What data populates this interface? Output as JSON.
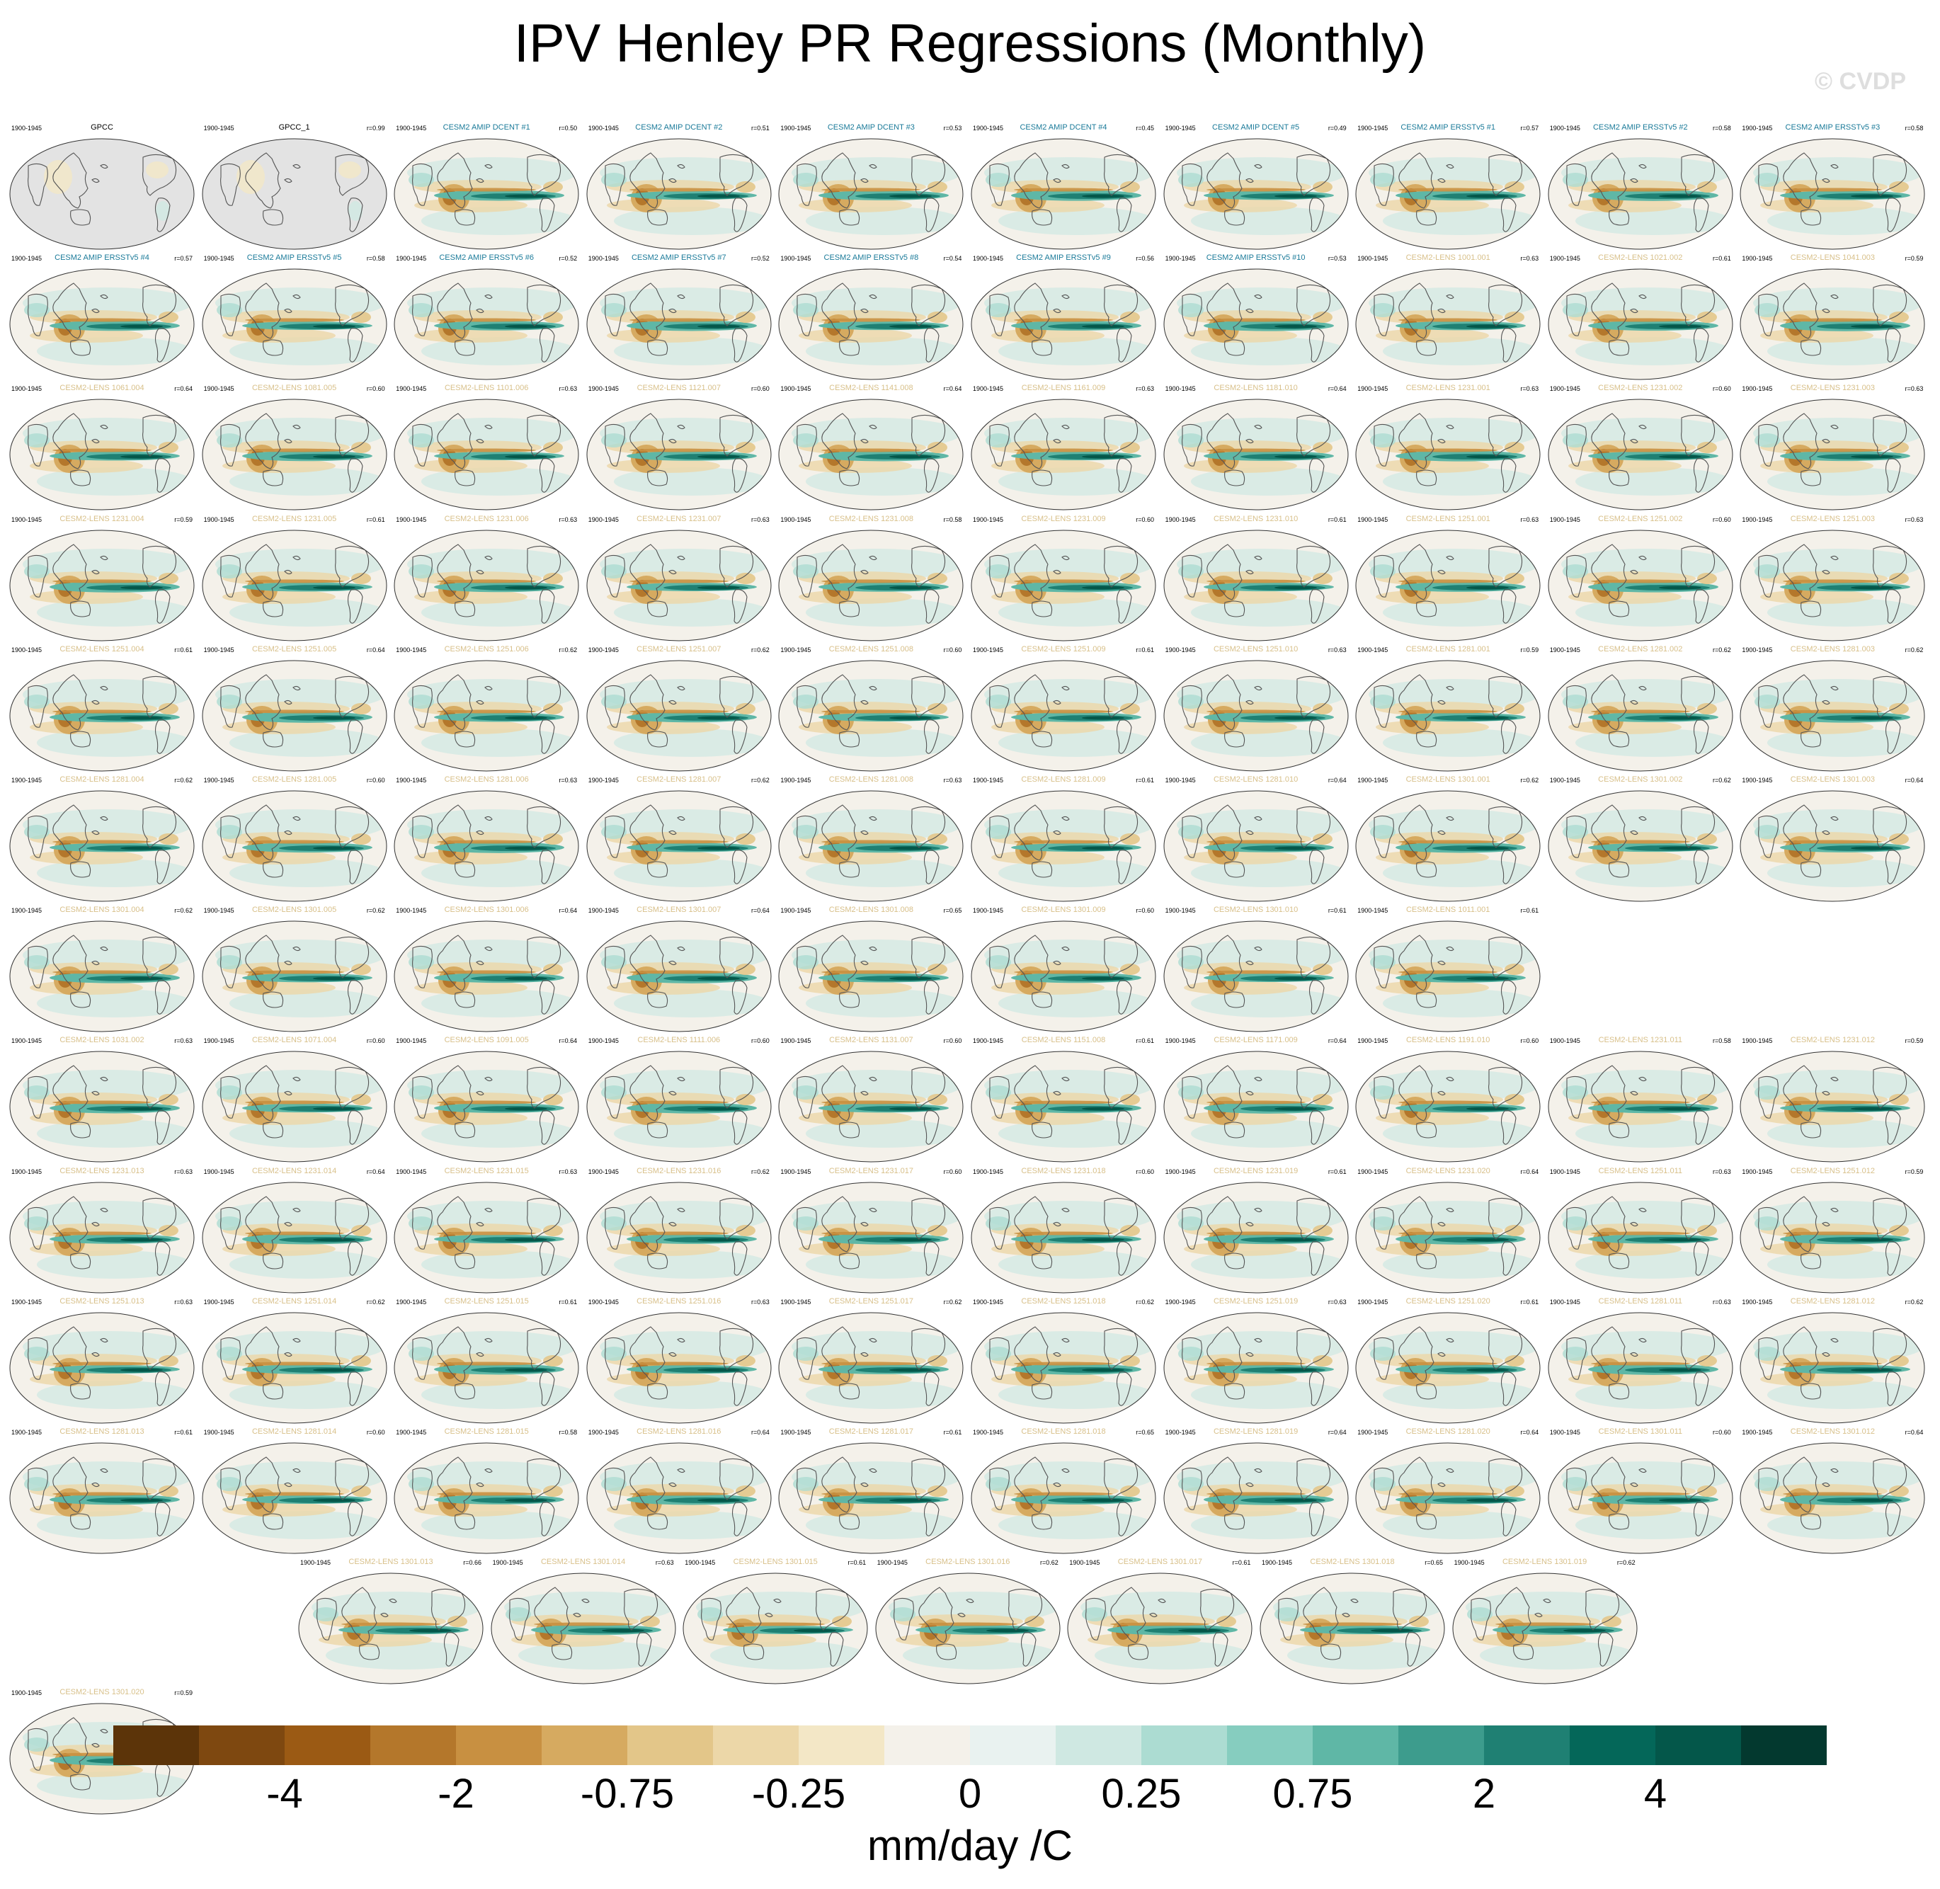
{
  "title": "IPV Henley PR Regressions (Monthly)",
  "watermark": "© CVDP",
  "colors": {
    "observations_label": "#000000",
    "amip_label": "#1a7a99",
    "lens_label": "#d8c08a",
    "land_obs_background": "#e3e3e3",
    "coastline": "#555555"
  },
  "chart_data": {
    "type": "heatmap",
    "title": "IPV Henley PR Regressions (Monthly)",
    "units": "mm/day /C",
    "colorbar": {
      "levels": [
        -5,
        -4,
        -3,
        -2,
        -1,
        -0.75,
        -0.5,
        -0.25,
        -0.1,
        0,
        0.1,
        0.25,
        0.5,
        0.75,
        1,
        2,
        3,
        4,
        5
      ],
      "tick_labels": [
        "-4",
        "-2",
        "-0.75",
        "-0.25",
        "0",
        "0.25",
        "0.75",
        "2",
        "4"
      ],
      "colors": [
        "#5c3409",
        "#7e4810",
        "#9b5a14",
        "#b4772b",
        "#c89041",
        "#d6aa60",
        "#e3c689",
        "#ecd7a8",
        "#f3e7c6",
        "#f4f1ea",
        "#e9f2f0",
        "#cfe8e2",
        "#acdcd2",
        "#86cdbf",
        "#5fb7a6",
        "#3d9c8d",
        "#1f8073",
        "#046759",
        "#04574a",
        "#03392f"
      ]
    },
    "panels": [
      {
        "name": "GPCC",
        "period": "1900-1945",
        "r": ""
      },
      {
        "name": "GPCC_1",
        "period": "1900-1945",
        "r": "r=0.99"
      },
      {
        "name": "CESM2 AMIP DCENT #1",
        "period": "1900-1945",
        "r": "r=0.50"
      },
      {
        "name": "CESM2 AMIP DCENT #2",
        "period": "1900-1945",
        "r": "r=0.51"
      },
      {
        "name": "CESM2 AMIP DCENT #3",
        "period": "1900-1945",
        "r": "r=0.53"
      },
      {
        "name": "CESM2 AMIP DCENT #4",
        "period": "1900-1945",
        "r": "r=0.45"
      },
      {
        "name": "CESM2 AMIP DCENT #5",
        "period": "1900-1945",
        "r": "r=0.49"
      },
      {
        "name": "CESM2 AMIP ERSSTv5 #1",
        "period": "1900-1945",
        "r": "r=0.57"
      },
      {
        "name": "CESM2 AMIP ERSSTv5 #2",
        "period": "1900-1945",
        "r": "r=0.58"
      },
      {
        "name": "CESM2 AMIP ERSSTv5 #3",
        "period": "1900-1945",
        "r": "r=0.58"
      },
      {
        "name": "CESM2 AMIP ERSSTv5 #4",
        "period": "1900-1945",
        "r": "r=0.57"
      },
      {
        "name": "CESM2 AMIP ERSSTv5 #5",
        "period": "1900-1945",
        "r": "r=0.58"
      },
      {
        "name": "CESM2 AMIP ERSSTv5 #6",
        "period": "1900-1945",
        "r": "r=0.52"
      },
      {
        "name": "CESM2 AMIP ERSSTv5 #7",
        "period": "1900-1945",
        "r": "r=0.52"
      },
      {
        "name": "CESM2 AMIP ERSSTv5 #8",
        "period": "1900-1945",
        "r": "r=0.54"
      },
      {
        "name": "CESM2 AMIP ERSSTv5 #9",
        "period": "1900-1945",
        "r": "r=0.56"
      },
      {
        "name": "CESM2 AMIP ERSSTv5 #10",
        "period": "1900-1945",
        "r": "r=0.53"
      },
      {
        "name": "CESM2-LENS 1001.001",
        "period": "1900-1945",
        "r": "r=0.63"
      },
      {
        "name": "CESM2-LENS 1021.002",
        "period": "1900-1945",
        "r": "r=0.61"
      },
      {
        "name": "CESM2-LENS 1041.003",
        "period": "1900-1945",
        "r": "r=0.59"
      },
      {
        "name": "CESM2-LENS 1061.004",
        "period": "1900-1945",
        "r": "r=0.64"
      },
      {
        "name": "CESM2-LENS 1081.005",
        "period": "1900-1945",
        "r": "r=0.60"
      },
      {
        "name": "CESM2-LENS 1101.006",
        "period": "1900-1945",
        "r": "r=0.63"
      },
      {
        "name": "CESM2-LENS 1121.007",
        "period": "1900-1945",
        "r": "r=0.60"
      },
      {
        "name": "CESM2-LENS 1141.008",
        "period": "1900-1945",
        "r": "r=0.64"
      },
      {
        "name": "CESM2-LENS 1161.009",
        "period": "1900-1945",
        "r": "r=0.63"
      },
      {
        "name": "CESM2-LENS 1181.010",
        "period": "1900-1945",
        "r": "r=0.64"
      },
      {
        "name": "CESM2-LENS 1231.001",
        "period": "1900-1945",
        "r": "r=0.63"
      },
      {
        "name": "CESM2-LENS 1231.002",
        "period": "1900-1945",
        "r": "r=0.60"
      },
      {
        "name": "CESM2-LENS 1231.003",
        "period": "1900-1945",
        "r": "r=0.63"
      },
      {
        "name": "CESM2-LENS 1231.004",
        "period": "1900-1945",
        "r": "r=0.59"
      },
      {
        "name": "CESM2-LENS 1231.005",
        "period": "1900-1945",
        "r": "r=0.61"
      },
      {
        "name": "CESM2-LENS 1231.006",
        "period": "1900-1945",
        "r": "r=0.63"
      },
      {
        "name": "CESM2-LENS 1231.007",
        "period": "1900-1945",
        "r": "r=0.63"
      },
      {
        "name": "CESM2-LENS 1231.008",
        "period": "1900-1945",
        "r": "r=0.58"
      },
      {
        "name": "CESM2-LENS 1231.009",
        "period": "1900-1945",
        "r": "r=0.60"
      },
      {
        "name": "CESM2-LENS 1231.010",
        "period": "1900-1945",
        "r": "r=0.61"
      },
      {
        "name": "CESM2-LENS 1251.001",
        "period": "1900-1945",
        "r": "r=0.63"
      },
      {
        "name": "CESM2-LENS 1251.002",
        "period": "1900-1945",
        "r": "r=0.60"
      },
      {
        "name": "CESM2-LENS 1251.003",
        "period": "1900-1945",
        "r": "r=0.63"
      },
      {
        "name": "CESM2-LENS 1251.004",
        "period": "1900-1945",
        "r": "r=0.61"
      },
      {
        "name": "CESM2-LENS 1251.005",
        "period": "1900-1945",
        "r": "r=0.64"
      },
      {
        "name": "CESM2-LENS 1251.006",
        "period": "1900-1945",
        "r": "r=0.62"
      },
      {
        "name": "CESM2-LENS 1251.007",
        "period": "1900-1945",
        "r": "r=0.62"
      },
      {
        "name": "CESM2-LENS 1251.008",
        "period": "1900-1945",
        "r": "r=0.60"
      },
      {
        "name": "CESM2-LENS 1251.009",
        "period": "1900-1945",
        "r": "r=0.61"
      },
      {
        "name": "CESM2-LENS 1251.010",
        "period": "1900-1945",
        "r": "r=0.63"
      },
      {
        "name": "CESM2-LENS 1281.001",
        "period": "1900-1945",
        "r": "r=0.59"
      },
      {
        "name": "CESM2-LENS 1281.002",
        "period": "1900-1945",
        "r": "r=0.62"
      },
      {
        "name": "CESM2-LENS 1281.003",
        "period": "1900-1945",
        "r": "r=0.62"
      },
      {
        "name": "CESM2-LENS 1281.004",
        "period": "1900-1945",
        "r": "r=0.62"
      },
      {
        "name": "CESM2-LENS 1281.005",
        "period": "1900-1945",
        "r": "r=0.60"
      },
      {
        "name": "CESM2-LENS 1281.006",
        "period": "1900-1945",
        "r": "r=0.63"
      },
      {
        "name": "CESM2-LENS 1281.007",
        "period": "1900-1945",
        "r": "r=0.62"
      },
      {
        "name": "CESM2-LENS 1281.008",
        "period": "1900-1945",
        "r": "r=0.63"
      },
      {
        "name": "CESM2-LENS 1281.009",
        "period": "1900-1945",
        "r": "r=0.61"
      },
      {
        "name": "CESM2-LENS 1281.010",
        "period": "1900-1945",
        "r": "r=0.64"
      },
      {
        "name": "CESM2-LENS 1301.001",
        "period": "1900-1945",
        "r": "r=0.62"
      },
      {
        "name": "CESM2-LENS 1301.002",
        "period": "1900-1945",
        "r": "r=0.62"
      },
      {
        "name": "CESM2-LENS 1301.003",
        "period": "1900-1945",
        "r": "r=0.64"
      },
      {
        "name": "CESM2-LENS 1301.004",
        "period": "1900-1945",
        "r": "r=0.62"
      },
      {
        "name": "CESM2-LENS 1301.005",
        "period": "1900-1945",
        "r": "r=0.62"
      },
      {
        "name": "CESM2-LENS 1301.006",
        "period": "1900-1945",
        "r": "r=0.64"
      },
      {
        "name": "CESM2-LENS 1301.007",
        "period": "1900-1945",
        "r": "r=0.64"
      },
      {
        "name": "CESM2-LENS 1301.008",
        "period": "1900-1945",
        "r": "r=0.65"
      },
      {
        "name": "CESM2-LENS 1301.009",
        "period": "1900-1945",
        "r": "r=0.60"
      },
      {
        "name": "CESM2-LENS 1301.010",
        "period": "1900-1945",
        "r": "r=0.61"
      },
      {
        "name": "CESM2-LENS 1011.001",
        "period": "1900-1945",
        "r": "r=0.61"
      },
      {
        "name": "CESM2-LENS 1031.002",
        "period": "1900-1945",
        "r": "r=0.63"
      },
      {
        "name": "CESM2-LENS 1071.004",
        "period": "1900-1945",
        "r": "r=0.60"
      },
      {
        "name": "CESM2-LENS 1091.005",
        "period": "1900-1945",
        "r": "r=0.64"
      },
      {
        "name": "CESM2-LENS 1111.006",
        "period": "1900-1945",
        "r": "r=0.60"
      },
      {
        "name": "CESM2-LENS 1131.007",
        "period": "1900-1945",
        "r": "r=0.60"
      },
      {
        "name": "CESM2-LENS 1151.008",
        "period": "1900-1945",
        "r": "r=0.61"
      },
      {
        "name": "CESM2-LENS 1171.009",
        "period": "1900-1945",
        "r": "r=0.64"
      },
      {
        "name": "CESM2-LENS 1191.010",
        "period": "1900-1945",
        "r": "r=0.60"
      },
      {
        "name": "CESM2-LENS 1231.011",
        "period": "1900-1945",
        "r": "r=0.58"
      },
      {
        "name": "CESM2-LENS 1231.012",
        "period": "1900-1945",
        "r": "r=0.59"
      },
      {
        "name": "CESM2-LENS 1231.013",
        "period": "1900-1945",
        "r": "r=0.63"
      },
      {
        "name": "CESM2-LENS 1231.014",
        "period": "1900-1945",
        "r": "r=0.64"
      },
      {
        "name": "CESM2-LENS 1231.015",
        "period": "1900-1945",
        "r": "r=0.63"
      },
      {
        "name": "CESM2-LENS 1231.016",
        "period": "1900-1945",
        "r": "r=0.62"
      },
      {
        "name": "CESM2-LENS 1231.017",
        "period": "1900-1945",
        "r": "r=0.60"
      },
      {
        "name": "CESM2-LENS 1231.018",
        "period": "1900-1945",
        "r": "r=0.60"
      },
      {
        "name": "CESM2-LENS 1231.019",
        "period": "1900-1945",
        "r": "r=0.61"
      },
      {
        "name": "CESM2-LENS 1231.020",
        "period": "1900-1945",
        "r": "r=0.64"
      },
      {
        "name": "CESM2-LENS 1251.011",
        "period": "1900-1945",
        "r": "r=0.63"
      },
      {
        "name": "CESM2-LENS 1251.012",
        "period": "1900-1945",
        "r": "r=0.59"
      },
      {
        "name": "CESM2-LENS 1251.013",
        "period": "1900-1945",
        "r": "r=0.63"
      },
      {
        "name": "CESM2-LENS 1251.014",
        "period": "1900-1945",
        "r": "r=0.62"
      },
      {
        "name": "CESM2-LENS 1251.015",
        "period": "1900-1945",
        "r": "r=0.61"
      },
      {
        "name": "CESM2-LENS 1251.016",
        "period": "1900-1945",
        "r": "r=0.63"
      },
      {
        "name": "CESM2-LENS 1251.017",
        "period": "1900-1945",
        "r": "r=0.62"
      },
      {
        "name": "CESM2-LENS 1251.018",
        "period": "1900-1945",
        "r": "r=0.62"
      },
      {
        "name": "CESM2-LENS 1251.019",
        "period": "1900-1945",
        "r": "r=0.63"
      },
      {
        "name": "CESM2-LENS 1251.020",
        "period": "1900-1945",
        "r": "r=0.61"
      },
      {
        "name": "CESM2-LENS 1281.011",
        "period": "1900-1945",
        "r": "r=0.63"
      },
      {
        "name": "CESM2-LENS 1281.012",
        "period": "1900-1945",
        "r": "r=0.62"
      },
      {
        "name": "CESM2-LENS 1281.013",
        "period": "1900-1945",
        "r": "r=0.61"
      },
      {
        "name": "CESM2-LENS 1281.014",
        "period": "1900-1945",
        "r": "r=0.60"
      },
      {
        "name": "CESM2-LENS 1281.015",
        "period": "1900-1945",
        "r": "r=0.58"
      },
      {
        "name": "CESM2-LENS 1281.016",
        "period": "1900-1945",
        "r": "r=0.64"
      },
      {
        "name": "CESM2-LENS 1281.017",
        "period": "1900-1945",
        "r": "r=0.61"
      },
      {
        "name": "CESM2-LENS 1281.018",
        "period": "1900-1945",
        "r": "r=0.65"
      },
      {
        "name": "CESM2-LENS 1281.019",
        "period": "1900-1945",
        "r": "r=0.64"
      },
      {
        "name": "CESM2-LENS 1281.020",
        "period": "1900-1945",
        "r": "r=0.64"
      },
      {
        "name": "CESM2-LENS 1301.011",
        "period": "1900-1945",
        "r": "r=0.60"
      },
      {
        "name": "CESM2-LENS 1301.012",
        "period": "1900-1945",
        "r": "r=0.64"
      },
      {
        "name": "CESM2-LENS 1301.013",
        "period": "1900-1945",
        "r": "r=0.66"
      },
      {
        "name": "CESM2-LENS 1301.014",
        "period": "1900-1945",
        "r": "r=0.63"
      },
      {
        "name": "CESM2-LENS 1301.015",
        "period": "1900-1945",
        "r": "r=0.61"
      },
      {
        "name": "CESM2-LENS 1301.016",
        "period": "1900-1945",
        "r": "r=0.62"
      },
      {
        "name": "CESM2-LENS 1301.017",
        "period": "1900-1945",
        "r": "r=0.61"
      },
      {
        "name": "CESM2-LENS 1301.018",
        "period": "1900-1945",
        "r": "r=0.65"
      },
      {
        "name": "CESM2-LENS 1301.019",
        "period": "1900-1945",
        "r": "r=0.62"
      },
      {
        "name": "CESM2-LENS 1301.020",
        "period": "1900-1945",
        "r": "r=0.59"
      }
    ]
  }
}
